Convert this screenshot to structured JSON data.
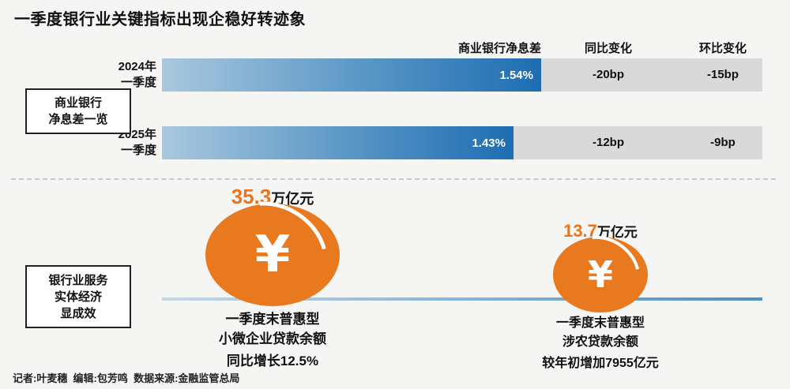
{
  "title": "一季度银行业关键指标出现企稳好转迹象",
  "colors": {
    "bar_gradient_start": "#a9c8de",
    "bar_gradient_end": "#1e6db2",
    "track_gray": "#d9d9da",
    "coin_orange": "#e8791f",
    "value_orange": "#e8761f",
    "background": "#f5f5f4"
  },
  "nim_section": {
    "label_lines": [
      "商业银行",
      "净息差一览"
    ],
    "headers": {
      "metric": "商业银行净息差",
      "yoy": "同比变化",
      "qoq": "环比变化"
    },
    "rows": [
      {
        "period_lines": [
          "2024年",
          "一季度"
        ],
        "value": "1.54%",
        "yoy": "-20bp",
        "qoq": "-15bp",
        "bar_style": "width:480px",
        "gray_style": "left:685px;width:280px"
      },
      {
        "period_lines": [
          "2025年",
          "一季度"
        ],
        "value": "1.43%",
        "yoy": "-12bp",
        "qoq": "-9bp",
        "bar_style": "width:445px",
        "gray_style": "left:650px;width:315px"
      }
    ]
  },
  "economy_section": {
    "label_lines": [
      "银行业服务",
      "实体经济",
      "显成效"
    ],
    "items": [
      {
        "value": "35.3",
        "unit": "万亿元",
        "currency_symbol": "¥",
        "desc_lines": [
          "一季度末普惠型",
          "小微企业贷款余额",
          "同比增长12.5%"
        ]
      },
      {
        "value": "13.7",
        "unit": "万亿元",
        "currency_symbol": "¥",
        "desc_lines": [
          "一季度末普惠型",
          "涉农贷款余额",
          "较年初增加7955亿元"
        ]
      }
    ]
  },
  "footer": "记者:叶麦穗  编辑:包芳鸣  数据来源:金融监管总局",
  "chart_data": [
    {
      "type": "bar",
      "orientation": "horizontal",
      "title": "商业银行净息差一览",
      "categories": [
        "2024年一季度",
        "2025年一季度"
      ],
      "series": [
        {
          "name": "商业银行净息差",
          "unit": "%",
          "values": [
            1.54,
            1.43
          ]
        },
        {
          "name": "同比变化",
          "unit": "bp",
          "values": [
            -20,
            -12
          ]
        },
        {
          "name": "环比变化",
          "unit": "bp",
          "values": [
            -15,
            -9
          ]
        }
      ],
      "xlim": [
        0,
        1.7
      ],
      "grid": false,
      "legend_position": "none"
    },
    {
      "type": "table",
      "title": "银行业服务实体经济显成效",
      "rows": [
        {
          "label": "一季度末普惠型小微企业贷款余额",
          "value": 35.3,
          "unit": "万亿元",
          "change": "同比增长12.5%"
        },
        {
          "label": "一季度末普惠型涉农贷款余额",
          "value": 13.7,
          "unit": "万亿元",
          "change": "较年初增加7955亿元"
        }
      ]
    }
  ]
}
